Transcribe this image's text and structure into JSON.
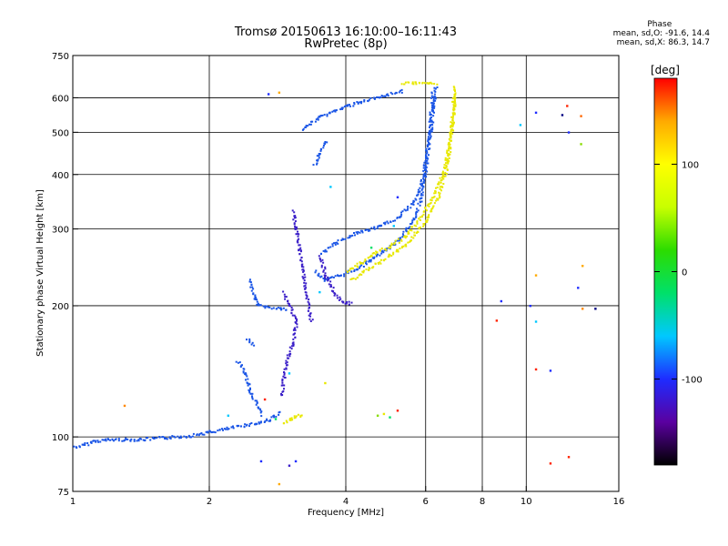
{
  "chart_data": {
    "type": "scatter",
    "title": "Tromsø 20150613 16:10:00–16:11:43",
    "subtitle": "RwPretec (8p)",
    "xlabel": "Frequency [MHz]",
    "ylabel": "Stationary phase Virtual Height [km]",
    "x_scale": "log",
    "y_scale": "log",
    "xlim": [
      1,
      16
    ],
    "ylim": [
      75,
      750
    ],
    "x_ticks": [
      1,
      2,
      4,
      6,
      8,
      10,
      16
    ],
    "x_grid": [
      2,
      4,
      6,
      8,
      10
    ],
    "y_ticks": [
      75,
      100,
      200,
      300,
      400,
      500,
      600,
      750
    ],
    "y_grid": [
      100,
      200,
      300,
      400,
      500,
      600
    ],
    "grid": true,
    "phase_summary": {
      "heading": "Phase",
      "line_o": "mean, sd,O: -91.6, 14.4",
      "line_x": "mean, sd,X: 86.3, 14.7"
    },
    "colorbar": {
      "label": "[deg]",
      "min": -180,
      "max": 180,
      "ticks": [
        100,
        0,
        -100
      ],
      "stops": [
        "#000000",
        "#5a00a0",
        "#1e2cff",
        "#00c8ff",
        "#00e06a",
        "#2cdc00",
        "#c8ff00",
        "#ffff00",
        "#ffaa00",
        "#ff0000"
      ]
    },
    "series": [
      {
        "color": "#1a55e6",
        "segments": [
          [
            [
              1.0,
              95
            ],
            [
              1.05,
              96
            ],
            [
              1.1,
              98
            ],
            [
              1.2,
              99
            ],
            [
              1.4,
              99
            ],
            [
              1.6,
              100
            ],
            [
              1.8,
              101
            ],
            [
              2.0,
              103
            ],
            [
              2.2,
              105
            ],
            [
              2.4,
              107
            ],
            [
              2.55,
              108
            ],
            [
              2.7,
              110
            ],
            [
              2.85,
              114
            ]
          ],
          [
            [
              2.45,
              230
            ],
            [
              2.5,
              212
            ],
            [
              2.55,
              202
            ],
            [
              2.7,
              199
            ],
            [
              2.85,
              198
            ],
            [
              2.95,
              197
            ]
          ],
          [
            [
              2.42,
              168
            ],
            [
              2.5,
              163
            ]
          ],
          [
            [
              2.3,
              150
            ],
            [
              2.4,
              140
            ],
            [
              2.45,
              128
            ],
            [
              2.55,
              118
            ],
            [
              2.6,
              113
            ]
          ],
          [
            [
              3.4,
              240
            ],
            [
              3.6,
              230
            ],
            [
              3.9,
              236
            ],
            [
              4.2,
              244
            ],
            [
              4.5,
              255
            ],
            [
              4.8,
              266
            ],
            [
              5.1,
              278
            ],
            [
              5.4,
              298
            ],
            [
              5.65,
              320
            ],
            [
              5.85,
              355
            ],
            [
              6.0,
              420
            ],
            [
              6.1,
              500
            ],
            [
              6.2,
              620
            ]
          ],
          [
            [
              3.5,
              265
            ],
            [
              3.8,
              280
            ],
            [
              4.2,
              295
            ],
            [
              4.7,
              304
            ],
            [
              5.2,
              320
            ],
            [
              5.6,
              345
            ],
            [
              5.85,
              380
            ],
            [
              6.0,
              440
            ],
            [
              6.15,
              520
            ],
            [
              6.3,
              640
            ]
          ],
          [
            [
              3.4,
              420
            ],
            [
              3.5,
              450
            ],
            [
              3.6,
              480
            ]
          ],
          [
            [
              3.2,
              510
            ],
            [
              3.5,
              545
            ],
            [
              3.9,
              570
            ],
            [
              4.3,
              590
            ],
            [
              4.8,
              605
            ],
            [
              5.3,
              625
            ]
          ]
        ]
      },
      {
        "color": "#3a1ec8",
        "segments": [
          [
            [
              2.9,
              215
            ],
            [
              3.0,
              200
            ],
            [
              3.1,
              185
            ],
            [
              3.05,
              165
            ],
            [
              2.95,
              150
            ],
            [
              2.9,
              135
            ],
            [
              2.88,
              125
            ]
          ],
          [
            [
              3.05,
              330
            ],
            [
              3.1,
              300
            ],
            [
              3.15,
              270
            ],
            [
              3.2,
              245
            ],
            [
              3.25,
              220
            ],
            [
              3.3,
              200
            ],
            [
              3.35,
              185
            ]
          ],
          [
            [
              3.5,
              260
            ],
            [
              3.6,
              235
            ],
            [
              3.75,
              215
            ],
            [
              3.9,
              205
            ],
            [
              4.1,
              203
            ]
          ]
        ]
      },
      {
        "color": "#e8e800",
        "segments": [
          [
            [
              4.0,
              240
            ],
            [
              4.3,
              252
            ],
            [
              4.6,
              265
            ],
            [
              5.0,
              275
            ],
            [
              5.4,
              290
            ],
            [
              5.8,
              318
            ],
            [
              6.2,
              355
            ],
            [
              6.6,
              420
            ],
            [
              6.8,
              500
            ],
            [
              6.9,
              600
            ],
            [
              6.95,
              640
            ]
          ],
          [
            [
              4.1,
              230
            ],
            [
              4.5,
              245
            ],
            [
              5.0,
              262
            ],
            [
              5.5,
              282
            ],
            [
              6.0,
              315
            ],
            [
              6.4,
              360
            ],
            [
              6.7,
              430
            ],
            [
              6.85,
              520
            ],
            [
              6.95,
              620
            ]
          ],
          [
            [
              5.3,
              650
            ],
            [
              5.6,
              650
            ],
            [
              6.3,
              650
            ]
          ],
          [
            [
              2.9,
              108
            ],
            [
              3.0,
              110
            ],
            [
              3.1,
              112
            ],
            [
              3.2,
              113
            ]
          ]
        ]
      }
    ],
    "scatter_points": [
      {
        "x": 1.3,
        "y": 118,
        "c": "#ff8800"
      },
      {
        "x": 2.85,
        "y": 617,
        "c": "#ffaa00"
      },
      {
        "x": 2.7,
        "y": 612,
        "c": "#1e2cff"
      },
      {
        "x": 10.5,
        "y": 555,
        "c": "#1e2cff"
      },
      {
        "x": 12.3,
        "y": 575,
        "c": "#ff2200"
      },
      {
        "x": 12.0,
        "y": 548,
        "c": "#000080"
      },
      {
        "x": 13.2,
        "y": 545,
        "c": "#ff6600"
      },
      {
        "x": 12.4,
        "y": 500,
        "c": "#1e2cff"
      },
      {
        "x": 13.2,
        "y": 470,
        "c": "#88dd00"
      },
      {
        "x": 9.7,
        "y": 520,
        "c": "#00c8ff"
      },
      {
        "x": 8.8,
        "y": 205,
        "c": "#1e2cff"
      },
      {
        "x": 8.6,
        "y": 185,
        "c": "#ff2200"
      },
      {
        "x": 10.2,
        "y": 200,
        "c": "#1e2cff"
      },
      {
        "x": 10.5,
        "y": 184,
        "c": "#00c8ff"
      },
      {
        "x": 10.5,
        "y": 143,
        "c": "#ff2200"
      },
      {
        "x": 11.3,
        "y": 142,
        "c": "#1e2cff"
      },
      {
        "x": 13.3,
        "y": 247,
        "c": "#ffaa00"
      },
      {
        "x": 10.5,
        "y": 235,
        "c": "#ffaa00"
      },
      {
        "x": 13.0,
        "y": 220,
        "c": "#1e2cff"
      },
      {
        "x": 13.3,
        "y": 197,
        "c": "#ff8800"
      },
      {
        "x": 14.2,
        "y": 197,
        "c": "#000080"
      },
      {
        "x": 11.3,
        "y": 87,
        "c": "#ff2200"
      },
      {
        "x": 12.4,
        "y": 90,
        "c": "#ff2200"
      },
      {
        "x": 2.6,
        "y": 88,
        "c": "#1e2cff"
      },
      {
        "x": 3.0,
        "y": 86,
        "c": "#3a1ec8"
      },
      {
        "x": 2.85,
        "y": 78,
        "c": "#ffaa00"
      },
      {
        "x": 3.1,
        "y": 88,
        "c": "#1e2cff"
      },
      {
        "x": 4.7,
        "y": 112,
        "c": "#88dd00"
      },
      {
        "x": 4.85,
        "y": 113,
        "c": "#e8e800"
      },
      {
        "x": 5.0,
        "y": 111,
        "c": "#00e06a"
      },
      {
        "x": 5.2,
        "y": 115,
        "c": "#ff2200"
      },
      {
        "x": 4.55,
        "y": 272,
        "c": "#00e06a"
      },
      {
        "x": 3.6,
        "y": 133,
        "c": "#e8e800"
      },
      {
        "x": 3.5,
        "y": 215,
        "c": "#00c8ff"
      },
      {
        "x": 2.8,
        "y": 110,
        "c": "#00e06a"
      },
      {
        "x": 2.65,
        "y": 122,
        "c": "#ff2200"
      },
      {
        "x": 2.2,
        "y": 112,
        "c": "#00c8ff"
      },
      {
        "x": 3.0,
        "y": 140,
        "c": "#00c8ff"
      },
      {
        "x": 3.7,
        "y": 375,
        "c": "#00c8ff"
      },
      {
        "x": 5.1,
        "y": 305,
        "c": "#00c8ff"
      },
      {
        "x": 5.2,
        "y": 355,
        "c": "#1e2cff"
      }
    ]
  }
}
